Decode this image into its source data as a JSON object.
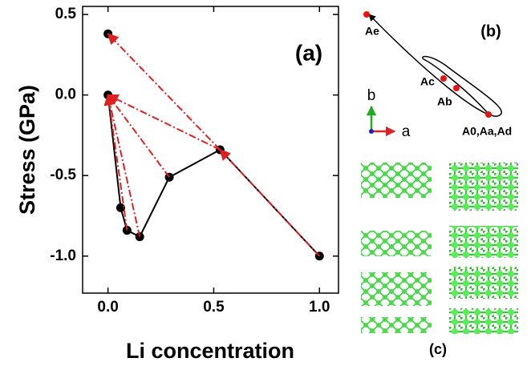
{
  "chart_data": {
    "type": "scatter",
    "annotation": "(a)",
    "xlabel": "Li concentration",
    "ylabel": "Stress (GPa)",
    "xlim": [
      -0.12,
      1.09
    ],
    "ylim": [
      -1.23,
      0.55
    ],
    "xticks": [
      {
        "value": 0,
        "label": "0.0"
      },
      {
        "value": 0.5,
        "label": "0.5"
      },
      {
        "value": 1,
        "label": "1.0"
      }
    ],
    "yticks": [
      {
        "value": 0.5,
        "label": "0.5"
      },
      {
        "value": 0,
        "label": "0.0"
      },
      {
        "value": -0.5,
        "label": "-0.5"
      },
      {
        "value": -1,
        "label": "-1.0"
      }
    ],
    "series": [
      {
        "color": "#000000",
        "x": [
          0,
          0,
          0.06,
          0.09,
          0.15,
          0.29,
          0.53,
          1.0
        ],
        "y": [
          0.38,
          0,
          -0.7,
          -0.84,
          -0.88,
          -0.51,
          -0.34,
          -1.0
        ]
      },
      {
        "color": "#000000",
        "line": true,
        "x": [
          0,
          0.06,
          0.09,
          0.15,
          0.29,
          0.53,
          1.0
        ],
        "y": [
          0,
          -0.7,
          -0.84,
          -0.88,
          -0.51,
          -0.34,
          -1.0
        ]
      },
      {
        "color": "#e02020",
        "arrows": true,
        "x": [
          1.0,
          0.53,
          null,
          0.53,
          0,
          null,
          0.53,
          0,
          null,
          0.29,
          0,
          null,
          0.15,
          0,
          null,
          0.09,
          0
        ],
        "y": [
          -1.0,
          -0.34,
          null,
          -0.34,
          0.38,
          null,
          -0.34,
          0,
          null,
          -0.51,
          0,
          null,
          -0.88,
          0,
          null,
          -0.84,
          0
        ]
      }
    ]
  },
  "panel_b": {
    "label": "(b)",
    "points": [
      "Ae",
      "Ac",
      "Ab",
      "A0,Aa,Ad"
    ],
    "axis_b": "b",
    "axis_a": "a"
  },
  "panel_c": {
    "label": "(c)"
  }
}
